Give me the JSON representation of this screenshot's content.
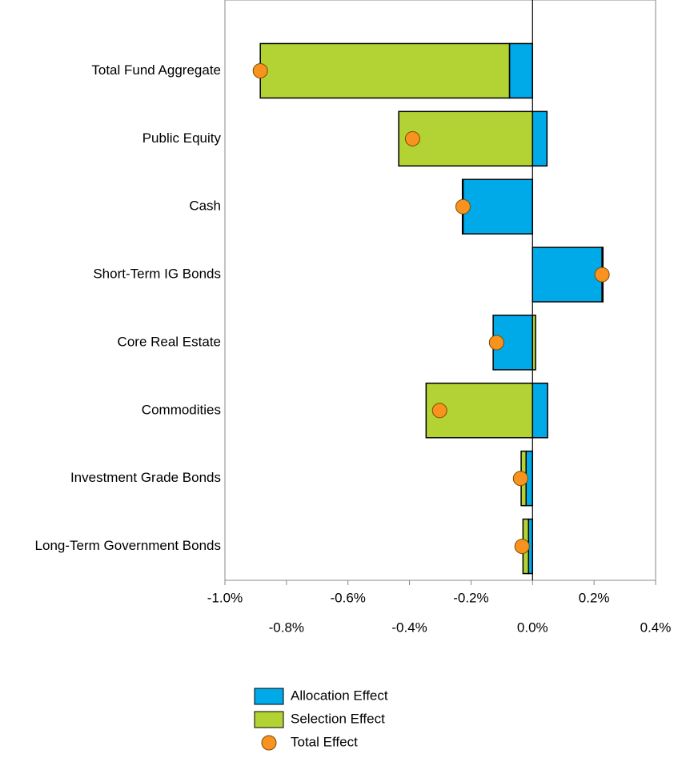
{
  "chart_data": {
    "type": "bar",
    "orientation": "horizontal",
    "stacked": true,
    "categories": [
      "Total Fund Aggregate",
      "Public Equity",
      "Cash",
      "Short-Term IG Bonds",
      "Core Real Estate",
      "Commodities",
      "Investment Grade Bonds",
      "Long-Term Government Bonds"
    ],
    "series": [
      {
        "name": "Allocation Effect",
        "color": "#00a9e8",
        "values": [
          -0.075,
          0.047,
          -0.226,
          0.226,
          -0.128,
          0.049,
          -0.021,
          -0.013
        ]
      },
      {
        "name": "Selection Effect",
        "color": "#b3d334",
        "values": [
          -0.81,
          -0.435,
          -0.002,
          0.003,
          0.01,
          -0.346,
          -0.016,
          -0.018
        ]
      },
      {
        "name": "Total Effect",
        "type": "scatter",
        "color": "#f7931e",
        "values": [
          -0.885,
          -0.39,
          -0.226,
          0.226,
          -0.117,
          -0.302,
          -0.039,
          -0.034
        ]
      }
    ],
    "xlim": [
      -1.0,
      0.4
    ],
    "xticks": [
      {
        "value": -1.0,
        "label": "-1.0%"
      },
      {
        "value": -0.8,
        "label": "-0.8%"
      },
      {
        "value": -0.6,
        "label": "-0.6%"
      },
      {
        "value": -0.4,
        "label": "-0.4%"
      },
      {
        "value": -0.2,
        "label": "-0.2%"
      },
      {
        "value": 0.0,
        "label": "0.0%"
      },
      {
        "value": 0.2,
        "label": "0.2%"
      },
      {
        "value": 0.4,
        "label": "0.4%"
      }
    ],
    "legend": "bottom"
  }
}
